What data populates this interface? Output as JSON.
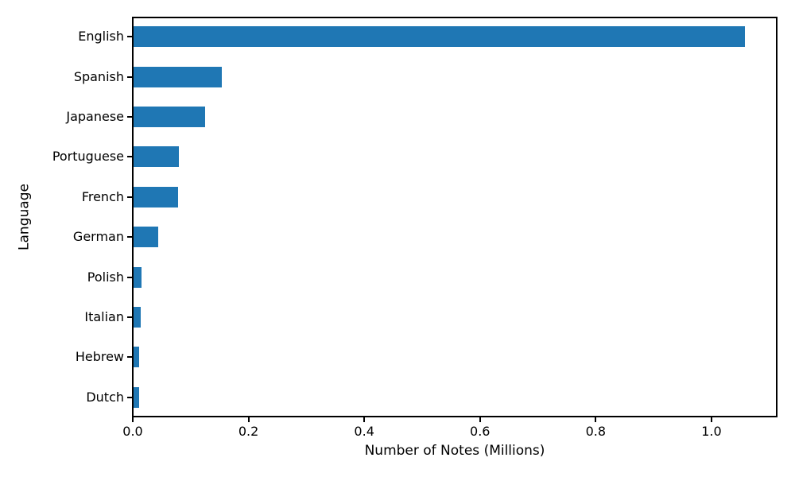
{
  "chart_data": {
    "type": "bar",
    "orientation": "horizontal",
    "title": "",
    "xlabel": "Number of Notes (Millions)",
    "ylabel": "Language",
    "categories": [
      "English",
      "Spanish",
      "Japanese",
      "Portuguese",
      "French",
      "German",
      "Polish",
      "Italian",
      "Hebrew",
      "Dutch"
    ],
    "values": [
      1.057,
      0.153,
      0.123,
      0.078,
      0.077,
      0.042,
      0.013,
      0.012,
      0.0095,
      0.009
    ],
    "xlim": [
      0,
      1.11
    ],
    "xtick_values": [
      0.0,
      0.2,
      0.4,
      0.6,
      0.8,
      1.0
    ],
    "xtick_labels": [
      "0.0",
      "0.2",
      "0.4",
      "0.6",
      "0.8",
      "1.0"
    ],
    "bar_color": "#1f77b4",
    "spine_color": "#000000",
    "grid": false,
    "legend": "none"
  }
}
